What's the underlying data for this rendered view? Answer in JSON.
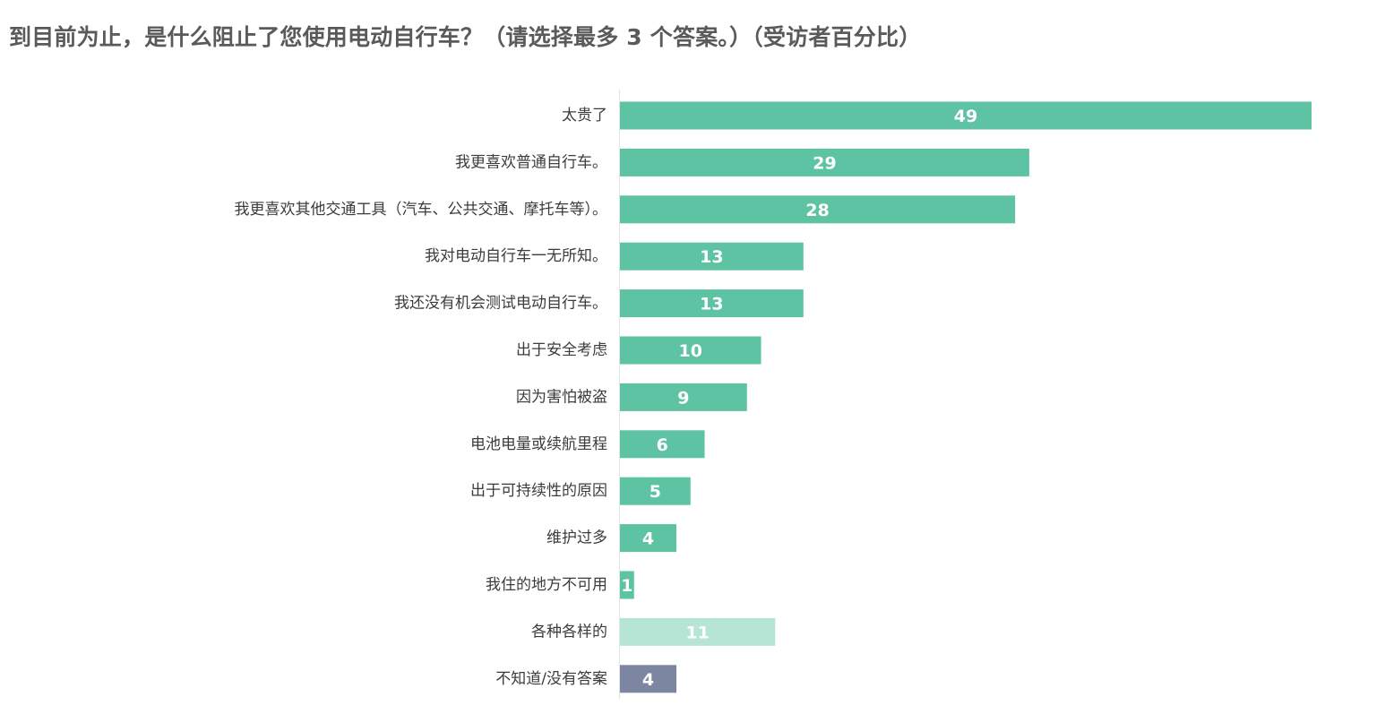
{
  "chart_data": {
    "type": "bar",
    "orientation": "horizontal",
    "title": "到目前为止，是什么阻止了您使用电动自行车？（请选择最多 3 个答案。）（受访者百分比）",
    "xlabel": "",
    "ylabel": "",
    "grid": false,
    "legend": "none",
    "xlim": [
      0,
      49
    ],
    "categories": [
      "太贵了",
      "我更喜欢普通自行车。",
      "我更喜欢其他交通工具（汽车、公共交通、摩托车等）。",
      "我对电动自行车一无所知。",
      "我还没有机会测试电动自行车。",
      "出于安全考虑",
      "因为害怕被盗",
      "电池电量或续航里程",
      "出于可持续性的原因",
      "维护过多",
      "我住的地方不可用",
      "各种各样的",
      "不知道/没有答案"
    ],
    "values": [
      49,
      29,
      28,
      13,
      13,
      10,
      9,
      6,
      5,
      4,
      1,
      11,
      4
    ],
    "bar_colors": [
      "#5ec3a3",
      "#5ec3a3",
      "#5ec3a3",
      "#5ec3a3",
      "#5ec3a3",
      "#5ec3a3",
      "#5ec3a3",
      "#5ec3a3",
      "#5ec3a3",
      "#5ec3a3",
      "#5ec3a3",
      "#b7e5d5",
      "#7c86a0"
    ],
    "label_color": "#ffffff",
    "axis_line_color": "#e4e4e4"
  }
}
